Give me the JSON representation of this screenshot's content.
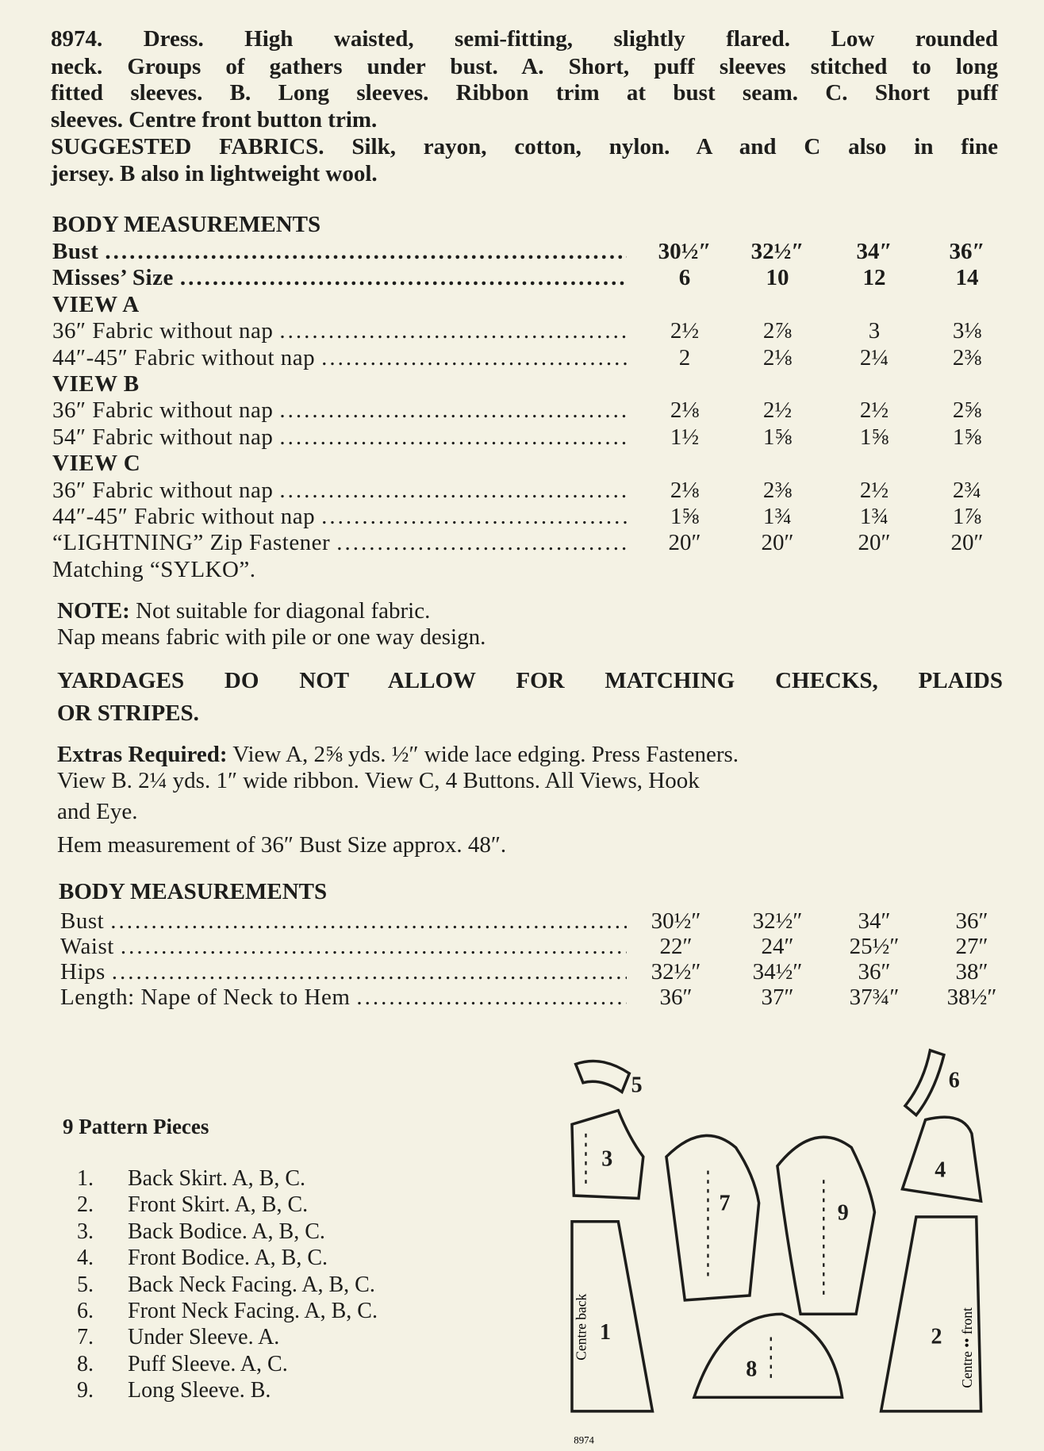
{
  "intro_lines": [
    "8974.  Dress.  High waisted, semi-fitting, slightly flared.  Low rounded",
    "neck.  Groups of gathers under bust.  A.  Short, puff sleeves stitched to long",
    "fitted sleeves.  B.  Long sleeves.  Ribbon trim at bust seam.  C.  Short puff",
    "sleeves.  Centre front button trim.",
    "SUGGESTED FABRICS.  Silk, rayon, cotton, nylon.  A and C also in fine",
    "jersey.  B also in lightweight wool."
  ],
  "table1": {
    "heading": "BODY MEASUREMENTS",
    "rows": [
      {
        "label": "Bust",
        "values": [
          "30½″",
          "32½″",
          "34″",
          "36″"
        ],
        "bold": true
      },
      {
        "label": "Misses’  Size",
        "values": [
          "6",
          "10",
          "12",
          "14"
        ],
        "bold": true
      },
      {
        "label": "VIEW A",
        "section": true
      },
      {
        "label": "36″  Fabric  without  nap",
        "values": [
          "2½",
          "2⅞",
          "3",
          "3⅛"
        ]
      },
      {
        "label": "44″-45″  Fabric  without  nap",
        "values": [
          "2",
          "2⅛",
          "2¼",
          "2⅜"
        ]
      },
      {
        "label": "VIEW B",
        "section": true
      },
      {
        "label": "36″  Fabric  without  nap",
        "values": [
          "2⅛",
          "2½",
          "2½",
          "2⅝"
        ]
      },
      {
        "label": "54″  Fabric  without  nap",
        "values": [
          "1½",
          "1⅝",
          "1⅝",
          "1⅝"
        ]
      },
      {
        "label": "VIEW C",
        "section": true
      },
      {
        "label": "36″  Fabric  without  nap",
        "values": [
          "2⅛",
          "2⅜",
          "2½",
          "2¾"
        ]
      },
      {
        "label": "44″-45″  Fabric  without  nap",
        "values": [
          "1⅝",
          "1¾",
          "1¾",
          "1⅞"
        ]
      },
      {
        "label": "“LIGHTNING”  Zip  Fastener",
        "values": [
          "20″",
          "20″",
          "20″",
          "20″"
        ]
      },
      {
        "label": "Matching  “SYLKO”.",
        "nodots": true
      }
    ]
  },
  "note": {
    "label": "NOTE:",
    "line1": " Not suitable for diagonal fabric.",
    "line2": "Nap means fabric with pile or one way design."
  },
  "yardages": [
    "YARDAGES  DO  NOT  ALLOW  FOR  MATCHING  CHECKS,  PLAIDS",
    "OR STRIPES."
  ],
  "extras": {
    "label": "Extras Required:",
    "line1": " View A, 2⅝ yds. ½″ wide lace edging.  Press Fasteners.",
    "line2": "View B.  2¼ yds.  1″  wide ribbon.  View C, 4 Buttons.  All Views, Hook",
    "line3": "and Eye."
  },
  "hem": "Hem measurement of 36″ Bust Size approx. 48″.",
  "table2": {
    "heading": "BODY MEASUREMENTS",
    "rows": [
      {
        "label": "Bust",
        "values": [
          "30½″",
          "32½″",
          "34″",
          "36″"
        ]
      },
      {
        "label": "Waist",
        "values": [
          "22″",
          "24″",
          "25½″",
          "27″"
        ]
      },
      {
        "label": "Hips",
        "values": [
          "32½″",
          "34½″",
          "36″",
          "38″"
        ]
      },
      {
        "label": "Length: Nape of Neck to Hem",
        "values": [
          "36″",
          "37″",
          "37¾″",
          "38½″"
        ]
      }
    ]
  },
  "pattern_pieces": {
    "heading": "9 Pattern Pieces",
    "items": [
      {
        "num": "1.",
        "text": "Back Skirt.  A, B, C."
      },
      {
        "num": "2.",
        "text": "Front Skirt.  A, B, C."
      },
      {
        "num": "3.",
        "text": "Back Bodice.  A, B, C."
      },
      {
        "num": "4.",
        "text": "Front Bodice.  A, B, C."
      },
      {
        "num": "5.",
        "text": "Back Neck Facing.  A, B, C."
      },
      {
        "num": "6.",
        "text": "Front Neck Facing.  A, B, C."
      },
      {
        "num": "7.",
        "text": "Under Sleeve.  A."
      },
      {
        "num": "8.",
        "text": "Puff Sleeve.  A, C."
      },
      {
        "num": "9.",
        "text": "Long Sleeve.  B."
      }
    ]
  },
  "diagram": {
    "labels": [
      "1",
      "2",
      "3",
      "4",
      "5",
      "6",
      "7",
      "8",
      "9"
    ],
    "centre_back": "Centre  back",
    "centre_front": "Centre  ••  front",
    "code": "8974"
  }
}
